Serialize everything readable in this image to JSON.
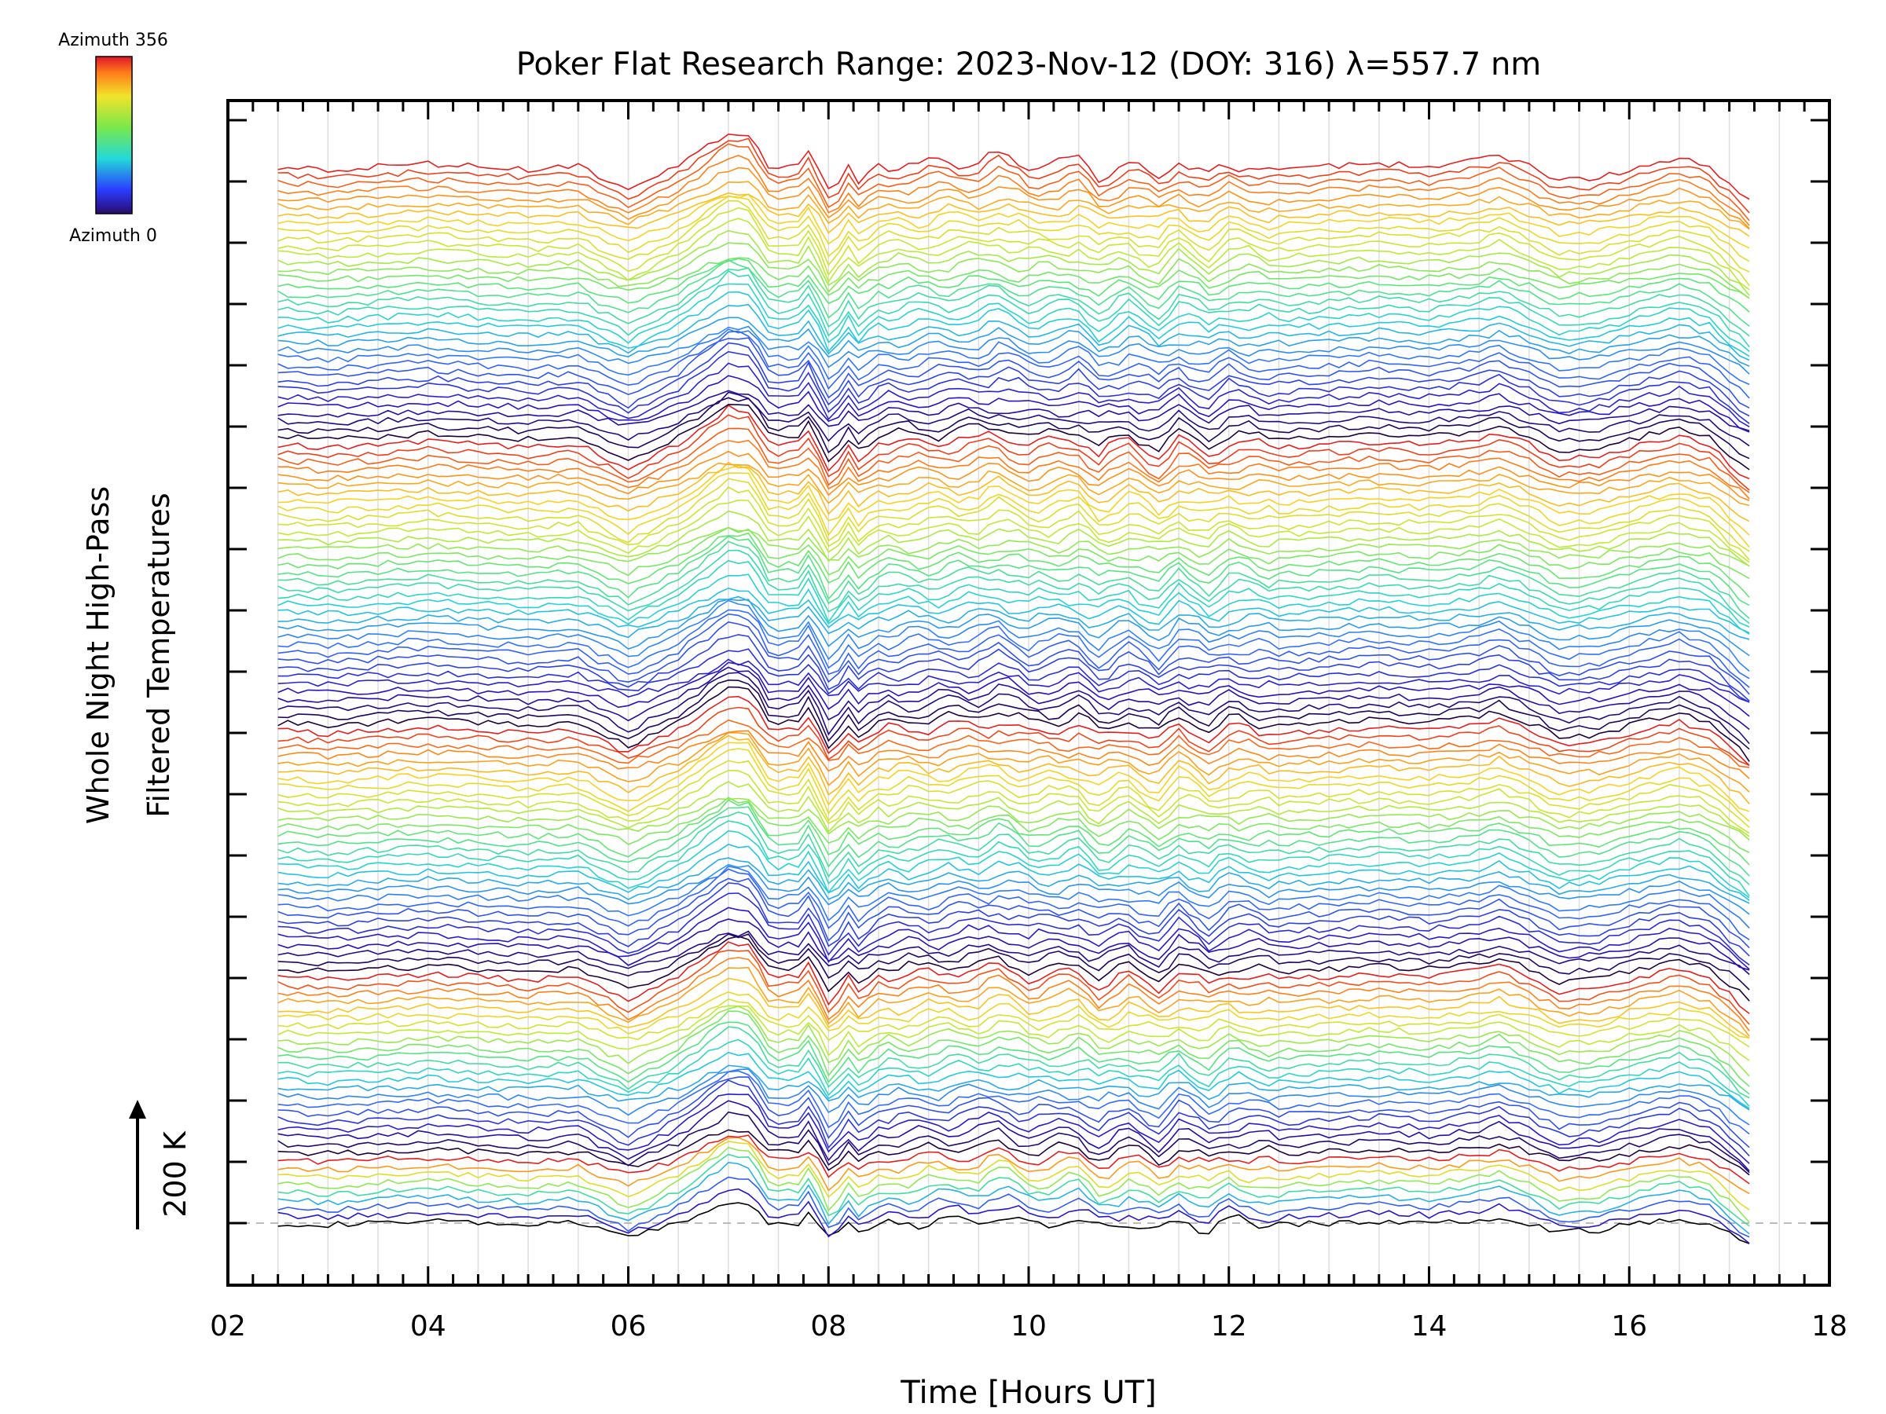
{
  "chart_data": {
    "type": "line",
    "title": "Poker Flat Research Range: 2023-Nov-12 (DOY: 316) λ=557.7 nm",
    "xlabel": "Time [Hours UT]",
    "ylabel": [
      "Whole Night High-Pass",
      "Filtered Temperatures"
    ],
    "xlim": [
      2,
      18
    ],
    "x_tick_labels": [
      "02",
      "04",
      "06",
      "08",
      "10",
      "12",
      "14",
      "16",
      "18"
    ],
    "scale_bar": {
      "label": "200 K",
      "value_K": 200
    },
    "colorbar": {
      "top_label": "Azimuth 356",
      "bottom_label": "Azimuth 0",
      "azimuth_range": [
        0,
        356
      ],
      "colormap": "rainbow"
    },
    "grid": "vertical dotted every 0.5 h",
    "legend": "colorbar top-left",
    "n_series": 134,
    "series_note": "stacked traces, one per azimuth, offset vertically; colour cycles through the azimuth colormap in 5 groups",
    "envelope": {
      "description": "common perturbation shape shared by all traces",
      "x": [
        2.5,
        3.0,
        3.5,
        4.0,
        4.5,
        5.0,
        5.5,
        6.0,
        6.5,
        7.0,
        7.2,
        7.35,
        7.45,
        7.55,
        7.65,
        7.8,
        7.95,
        8.05,
        8.15,
        8.3,
        8.5,
        9.0,
        9.5,
        9.7,
        10.0,
        10.5,
        10.7,
        11.0,
        11.3,
        11.5,
        11.8,
        12.0,
        12.5,
        13.0,
        13.5,
        14.0,
        14.5,
        14.7,
        15.0,
        15.3,
        15.7,
        16.0,
        16.5,
        16.8,
        17.2
      ],
      "y_K": [
        0,
        -5,
        0,
        5,
        0,
        -5,
        0,
        -40,
        0,
        60,
        55,
        20,
        -15,
        10,
        -10,
        25,
        -20,
        -65,
        10,
        -25,
        0,
        5,
        10,
        20,
        0,
        10,
        -15,
        5,
        -20,
        10,
        -15,
        5,
        -5,
        0,
        5,
        0,
        10,
        20,
        0,
        -25,
        -20,
        -5,
        15,
        0,
        -60
      ]
    }
  }
}
